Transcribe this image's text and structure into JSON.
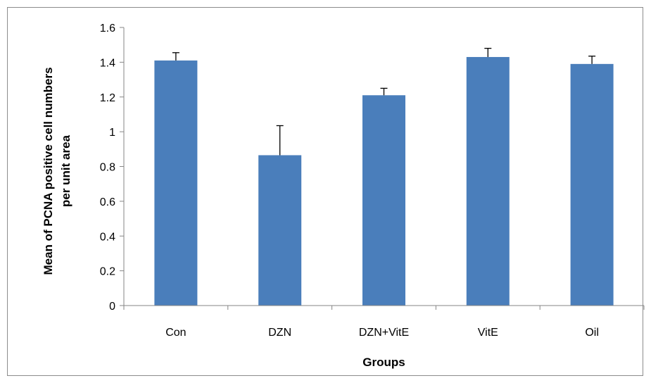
{
  "chart_data": {
    "type": "bar",
    "title": "",
    "xlabel": "Groups",
    "ylabel_lines": [
      "Mean of PCNA positive cell numbers",
      "per unit area"
    ],
    "categories": [
      "Con",
      "DZN",
      "DZN+VitE",
      "VitE",
      "Oil"
    ],
    "values": [
      1.41,
      0.865,
      1.21,
      1.43,
      1.39
    ],
    "errors": [
      0.045,
      0.17,
      0.04,
      0.05,
      0.045
    ],
    "ylim": [
      0,
      1.6
    ],
    "yticks": [
      "0",
      "0.2",
      "0.4",
      "0.6",
      "0.8",
      "1",
      "1.2",
      "1.4",
      "1.6"
    ],
    "grid": false,
    "legend": "none",
    "bar_color": "#4a7ebb"
  }
}
